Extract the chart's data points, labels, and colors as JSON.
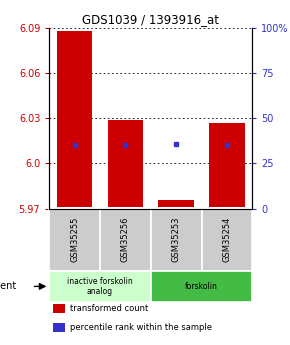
{
  "title": "GDS1039 / 1393916_at",
  "samples": [
    "GSM35255",
    "GSM35256",
    "GSM35253",
    "GSM35254"
  ],
  "bar_bottoms": [
    5.971,
    5.971,
    5.971,
    5.971
  ],
  "bar_tops": [
    6.088,
    6.029,
    5.976,
    6.027
  ],
  "blue_y": [
    6.012,
    6.012,
    6.013,
    6.012
  ],
  "bar_color": "#cc0000",
  "blue_color": "#3333cc",
  "ylim": [
    5.97,
    6.09
  ],
  "y_ticks_left": [
    5.97,
    6.0,
    6.03,
    6.06,
    6.09
  ],
  "y_ticks_right": [
    0,
    25,
    50,
    75,
    100
  ],
  "groups": [
    {
      "label": "inactive forskolin\nanalog",
      "cols": [
        0,
        1
      ],
      "color": "#ccffcc"
    },
    {
      "label": "forskolin",
      "cols": [
        2,
        3
      ],
      "color": "#44bb44"
    }
  ],
  "agent_label": "agent",
  "legend": [
    {
      "color": "#cc0000",
      "label": "transformed count"
    },
    {
      "color": "#3333cc",
      "label": "percentile rank within the sample"
    }
  ],
  "bg_color": "#ffffff",
  "tick_color_left": "#cc0000",
  "tick_color_right": "#3333cc",
  "bar_width": 0.7,
  "sample_box_color": "#cccccc"
}
